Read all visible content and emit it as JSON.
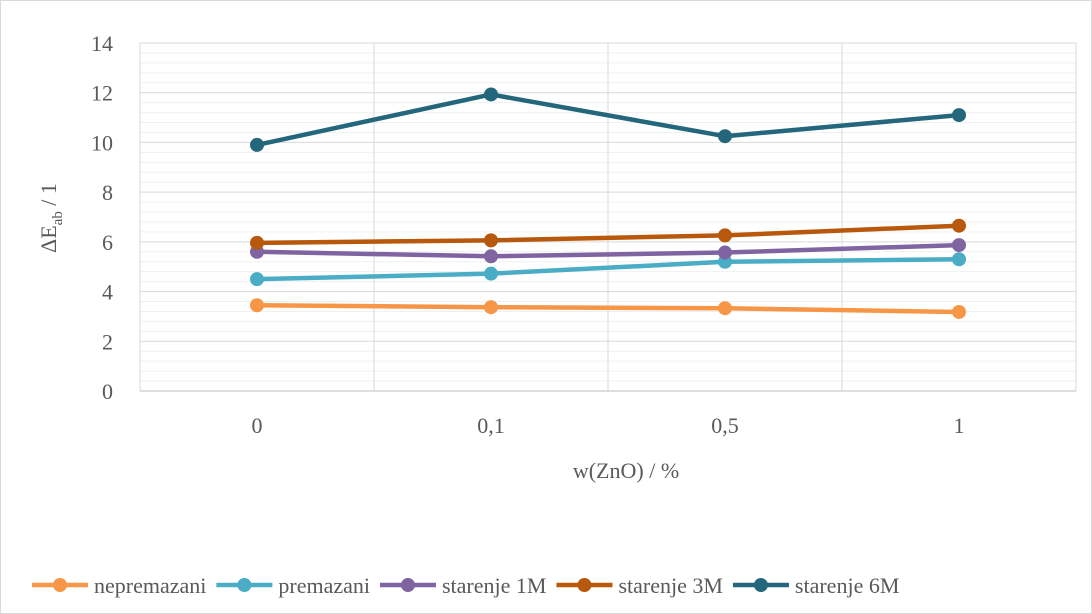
{
  "chart_data": {
    "type": "line",
    "xlabel": "w(ZnO) / %",
    "ylabel": {
      "main": "ΔE",
      "sub": "ab",
      "suffix": " / 1"
    },
    "categories": [
      "0",
      "0,1",
      "0,5",
      "1"
    ],
    "ylim": [
      0,
      14
    ],
    "yticks": [
      0,
      2,
      4,
      6,
      8,
      10,
      12,
      14
    ],
    "grid": true,
    "legend_position": "bottom",
    "series": [
      {
        "name": "nepremazani",
        "color": "#F79646",
        "values": [
          3.45,
          3.37,
          3.33,
          3.18
        ]
      },
      {
        "name": "premazani",
        "color": "#4BACC6",
        "values": [
          4.5,
          4.72,
          5.2,
          5.3
        ]
      },
      {
        "name": "starenje 1M",
        "color": "#8064A2",
        "values": [
          5.6,
          5.42,
          5.57,
          5.87
        ]
      },
      {
        "name": "starenje 3M",
        "color": "#B7580C",
        "values": [
          5.96,
          6.06,
          6.26,
          6.65
        ]
      },
      {
        "name": "starenje 6M",
        "color": "#24677D",
        "values": [
          9.9,
          11.93,
          10.25,
          11.1
        ]
      }
    ]
  }
}
